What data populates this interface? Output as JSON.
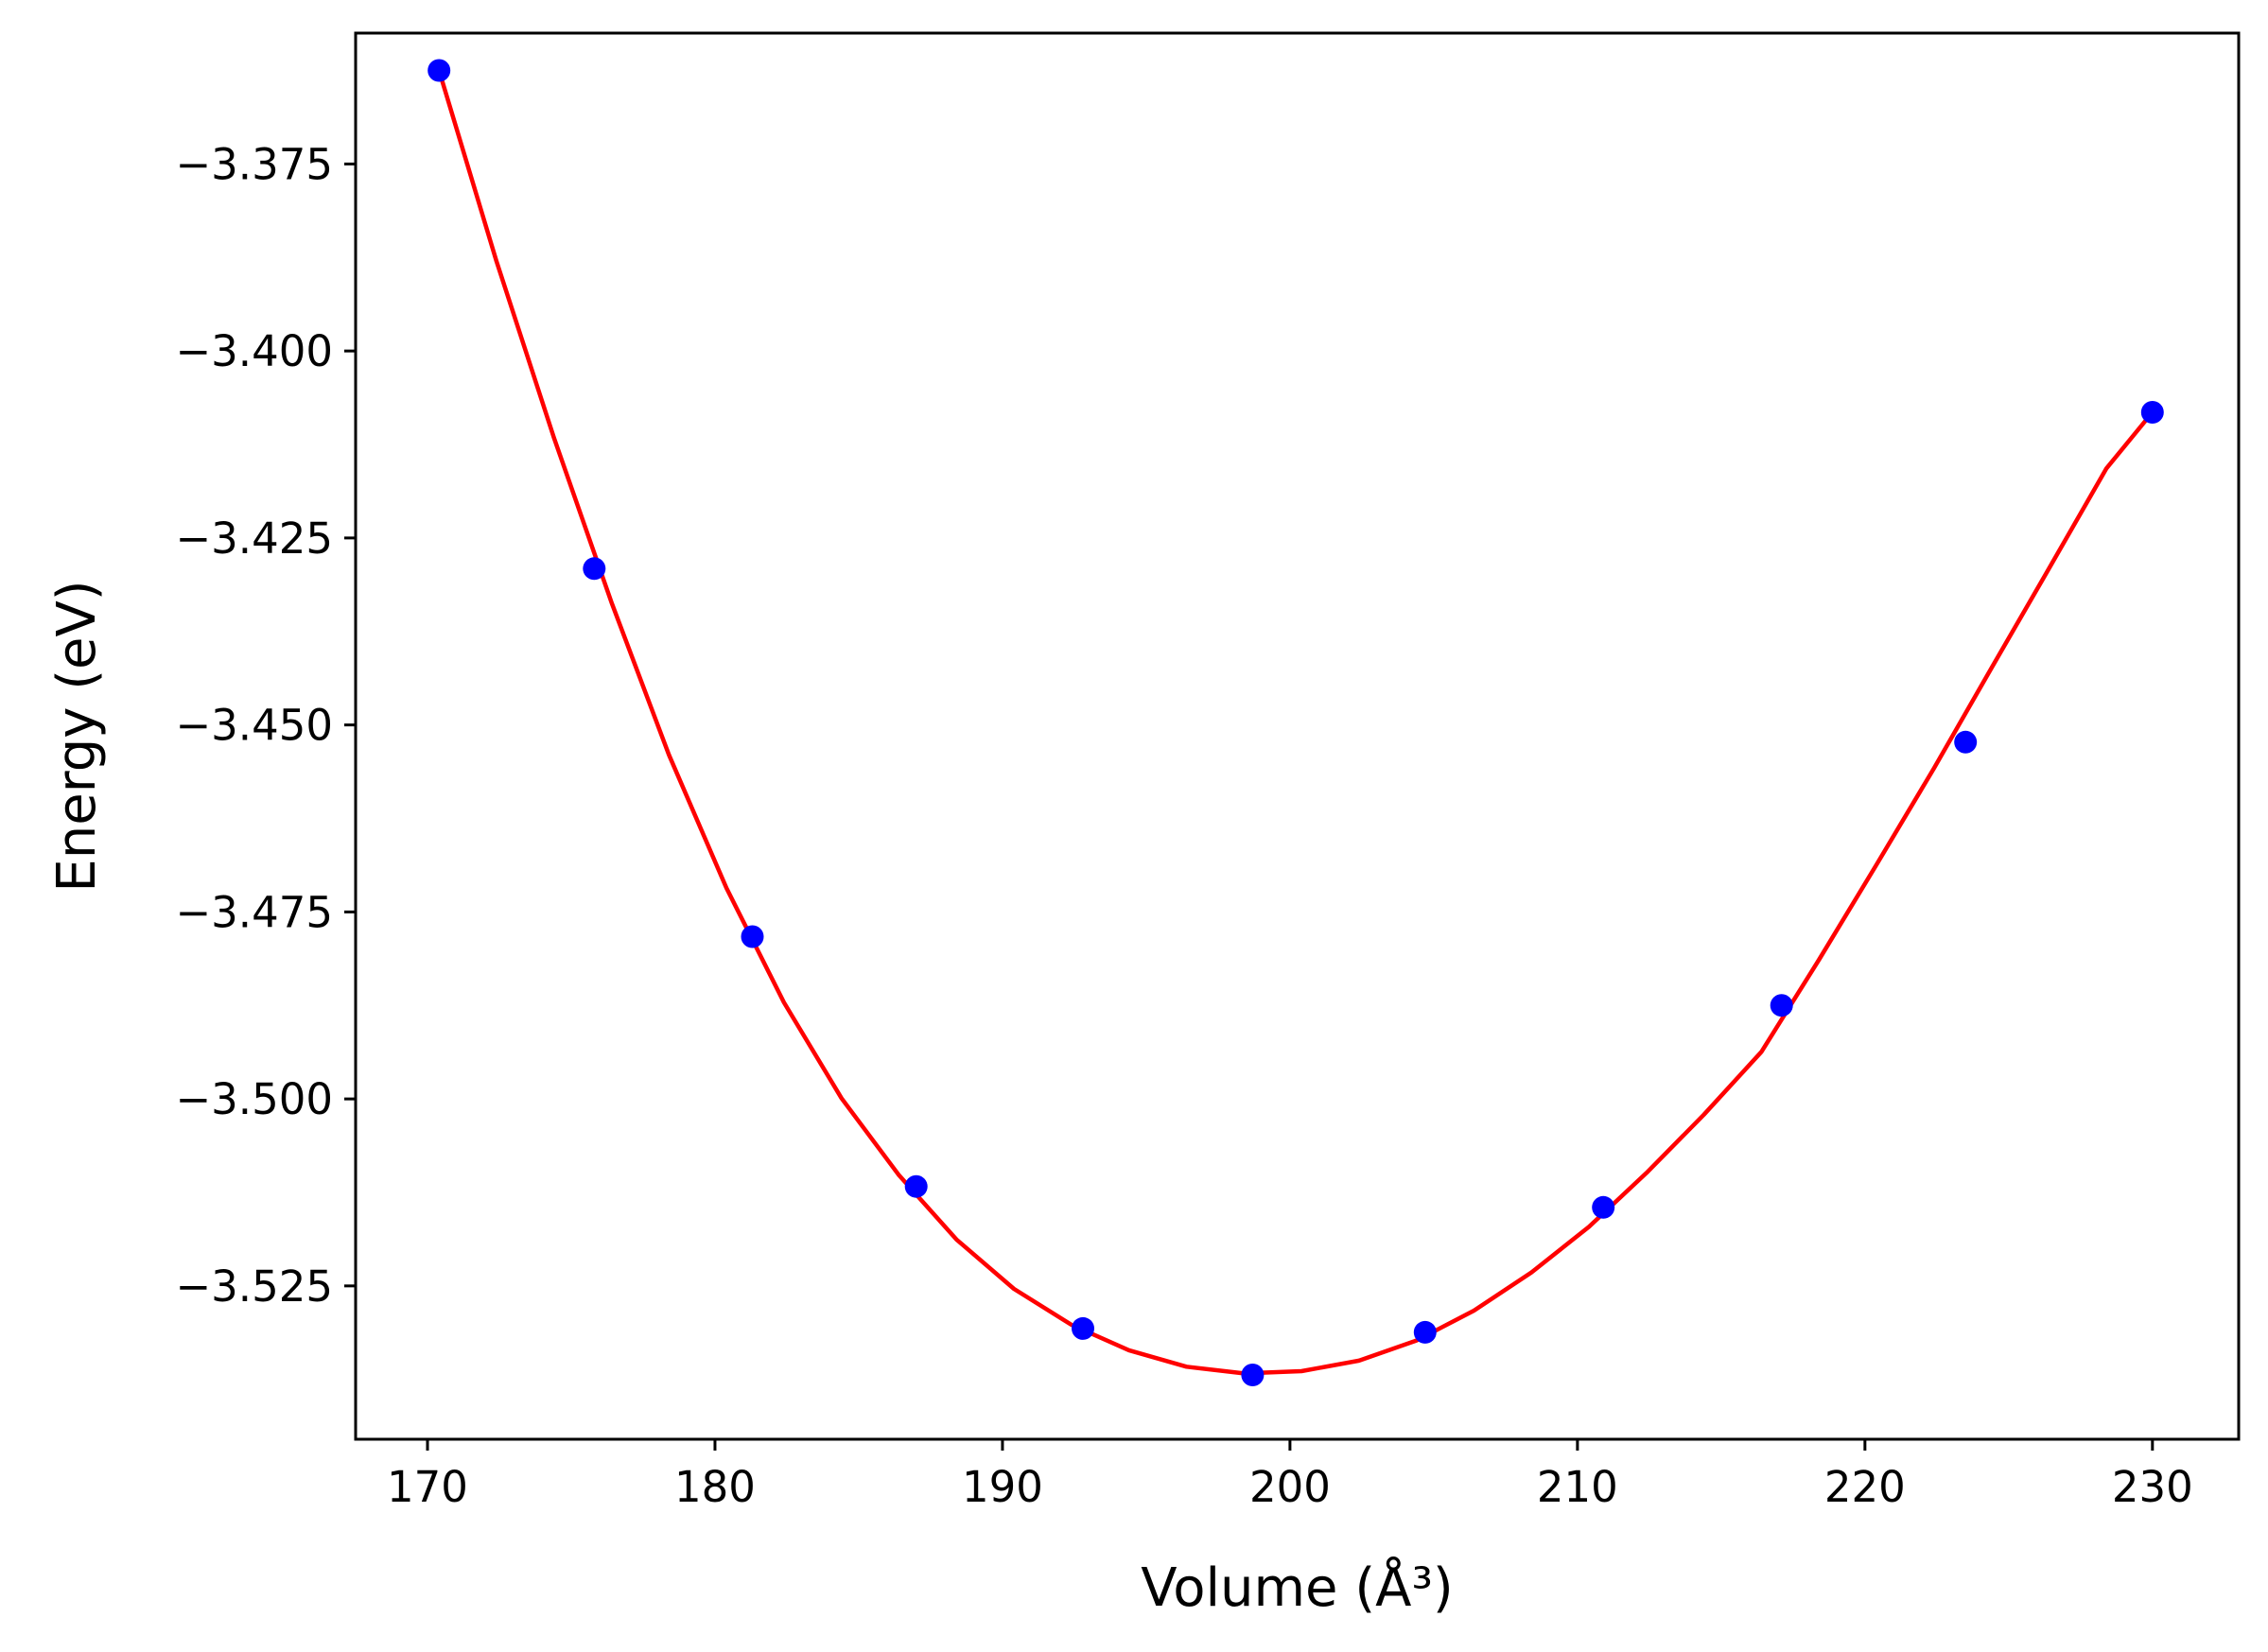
{
  "chart_data": {
    "type": "scatter",
    "title": "",
    "xlabel": "Volume (Å³)",
    "ylabel": "Energy (eV)",
    "xlim": [
      167.5,
      233.0
    ],
    "ylim": [
      -3.5455,
      -3.3575
    ],
    "xticks": [
      170,
      180,
      190,
      200,
      210,
      220,
      230
    ],
    "yticks": [
      -3.375,
      -3.4,
      -3.425,
      -3.45,
      -3.475,
      -3.5,
      -3.525
    ],
    "ytick_labels": [
      "−3.375",
      "−3.400",
      "−3.425",
      "−3.450",
      "−3.475",
      "−3.500",
      "−3.525"
    ],
    "grid": false,
    "series": [
      {
        "kind": "points",
        "color": "#0000ff",
        "x": [
          170.4,
          175.8,
          181.3,
          187.0,
          192.8,
          198.7,
          204.7,
          210.9,
          217.1,
          223.5,
          230.0
        ],
        "y": [
          -3.3625,
          -3.4291,
          -3.4783,
          -3.5117,
          -3.5307,
          -3.5369,
          -3.5312,
          -3.5145,
          -3.4875,
          -3.4523,
          -3.4082
        ]
      },
      {
        "kind": "fit-curve",
        "color": "#ff0000",
        "x": [
          170.4,
          172.4,
          174.4,
          176.4,
          178.4,
          180.4,
          182.4,
          184.4,
          186.4,
          188.4,
          190.4,
          192.4,
          194.4,
          196.4,
          198.4,
          200.4,
          202.4,
          204.4,
          206.4,
          208.4,
          210.4,
          212.4,
          214.4,
          216.4,
          218.4,
          220.4,
          222.4,
          224.4,
          226.4,
          228.4,
          230.0
        ],
        "y": [
          -3.3625,
          -3.388,
          -3.4116,
          -3.4336,
          -3.454,
          -3.4718,
          -3.4871,
          -3.4999,
          -3.5102,
          -3.5188,
          -3.5254,
          -3.5302,
          -3.5336,
          -3.5358,
          -3.5367,
          -3.5364,
          -3.535,
          -3.5323,
          -3.5283,
          -3.5232,
          -3.5171,
          -3.5099,
          -3.5021,
          -3.4937,
          -3.4814,
          -3.4687,
          -3.4558,
          -3.4424,
          -3.4291,
          -3.4157,
          -3.4082
        ]
      }
    ]
  }
}
